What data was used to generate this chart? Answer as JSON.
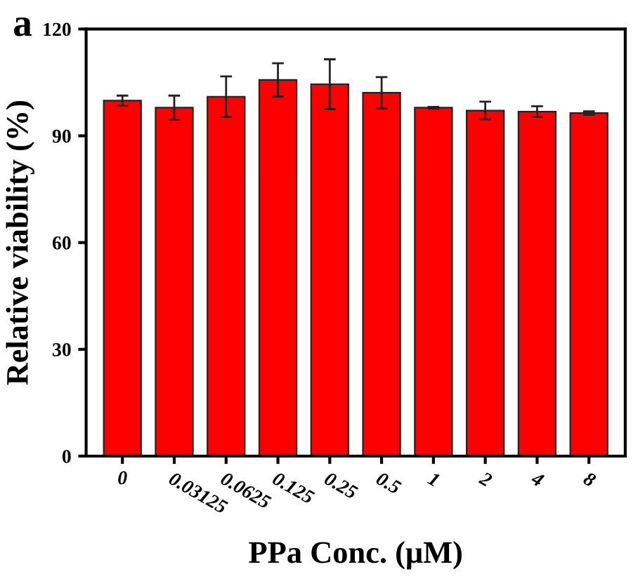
{
  "chart_data": {
    "type": "bar",
    "title": "a",
    "xlabel": "PPa Conc. (μM)",
    "ylabel": "Relative viability (%)",
    "categories": [
      "0",
      "0.03125",
      "0.0625",
      "0.125",
      "0.25",
      "0.5",
      "1",
      "2",
      "4",
      "8"
    ],
    "values": [
      99.9,
      97.9,
      101.0,
      105.7,
      104.5,
      102.1,
      97.9,
      97.1,
      96.8,
      96.4
    ],
    "errors": [
      1.4,
      3.4,
      5.7,
      4.7,
      7.0,
      4.4,
      0.2,
      2.5,
      1.5,
      0.5
    ],
    "color": "#ff0000",
    "ylim": [
      0,
      120
    ],
    "yticks": [
      0,
      30,
      60,
      90,
      120
    ],
    "grid": false,
    "legend": false
  }
}
